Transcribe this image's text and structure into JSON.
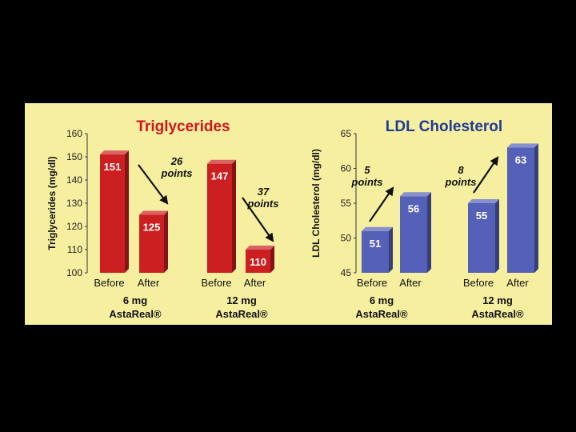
{
  "chart_data": [
    {
      "type": "bar",
      "title": "Triglycerides",
      "title_color": "#D0161E",
      "ylabel": "Triglycerides (mg/dl)",
      "ylim": [
        100,
        160
      ],
      "yticks": [
        100,
        110,
        120,
        130,
        140,
        150,
        160
      ],
      "categories": [
        "Before",
        "After",
        "Before",
        "After"
      ],
      "values": [
        151,
        125,
        147,
        110
      ],
      "value_labels": [
        "151",
        "125",
        "147",
        "110"
      ],
      "groups": [
        {
          "line1": "6 mg",
          "line2": "AstaReal®"
        },
        {
          "line1": "12 mg",
          "line2": "AstaReal®"
        }
      ],
      "annotations": [
        {
          "line1": "26",
          "line2": "points",
          "direction": "down"
        },
        {
          "line1": "37",
          "line2": "points",
          "direction": "down"
        }
      ],
      "bar_color": "#CC1F22"
    },
    {
      "type": "bar",
      "title": "LDL Cholesterol",
      "title_color": "#1F3A93",
      "ylabel": "LDL Cholesterol (mg/dl)",
      "ylim": [
        45,
        65
      ],
      "yticks": [
        45,
        50,
        55,
        60,
        65
      ],
      "categories": [
        "Before",
        "After",
        "Before",
        "After"
      ],
      "values": [
        51,
        56,
        55,
        63
      ],
      "value_labels": [
        "51",
        "56",
        "55",
        "63"
      ],
      "groups": [
        {
          "line1": "6 mg",
          "line2": "AstaReal®"
        },
        {
          "line1": "12 mg",
          "line2": "AstaReal®"
        }
      ],
      "annotations": [
        {
          "line1": "5",
          "line2": "points",
          "direction": "up"
        },
        {
          "line1": "8",
          "line2": "points",
          "direction": "up"
        }
      ],
      "bar_color": "#5560B8"
    }
  ]
}
